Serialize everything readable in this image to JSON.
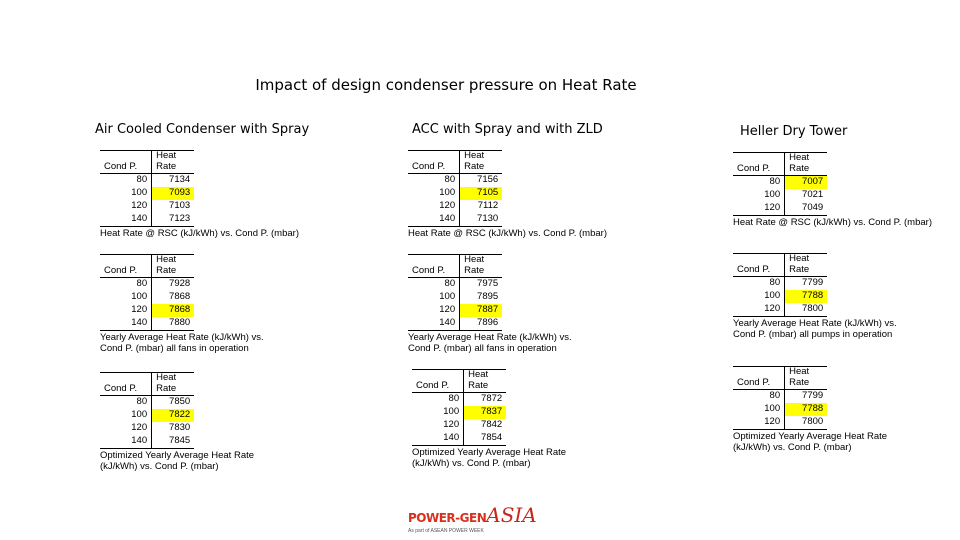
{
  "title": "Impact of design condenser pressure on Heat Rate",
  "columns": [
    {
      "heading": "Air Cooled Condenser with Spray",
      "tables": [
        {
          "col1": "Cond P.",
          "col2a": "Heat",
          "col2b": "Rate",
          "rows": [
            [
              "80",
              "7134"
            ],
            [
              "100",
              "7093"
            ],
            [
              "120",
              "7103"
            ],
            [
              "140",
              "7123"
            ]
          ],
          "highlight": 1,
          "caption1": "Heat Rate @ RSC (kJ/kWh) vs. Cond P. (mbar)",
          "caption2": ""
        },
        {
          "col1": "Cond P.",
          "col2a": "Heat",
          "col2b": "Rate",
          "rows": [
            [
              "80",
              "7928"
            ],
            [
              "100",
              "7868"
            ],
            [
              "120",
              "7868"
            ],
            [
              "140",
              "7880"
            ]
          ],
          "highlight": 2,
          "caption1": "Yearly Average Heat Rate (kJ/kWh) vs.",
          "caption2": "Cond P. (mbar) all fans in operation"
        },
        {
          "col1": "Cond P.",
          "col2a": "Heat",
          "col2b": "Rate",
          "rows": [
            [
              "80",
              "7850"
            ],
            [
              "100",
              "7822"
            ],
            [
              "120",
              "7830"
            ],
            [
              "140",
              "7845"
            ]
          ],
          "highlight": 1,
          "caption1": "Optimized Yearly Average Heat Rate",
          "caption2": "(kJ/kWh) vs. Cond P. (mbar)"
        }
      ]
    },
    {
      "heading": "ACC with Spray and with ZLD",
      "tables": [
        {
          "col1": "Cond P.",
          "col2a": "Heat",
          "col2b": "Rate",
          "rows": [
            [
              "80",
              "7156"
            ],
            [
              "100",
              "7105"
            ],
            [
              "120",
              "7112"
            ],
            [
              "140",
              "7130"
            ]
          ],
          "highlight": 1,
          "caption1": "Heat Rate @ RSC (kJ/kWh) vs. Cond P. (mbar)",
          "caption2": ""
        },
        {
          "col1": "Cond P.",
          "col2a": "Heat",
          "col2b": "Rate",
          "rows": [
            [
              "80",
              "7975"
            ],
            [
              "100",
              "7895"
            ],
            [
              "120",
              "7887"
            ],
            [
              "140",
              "7896"
            ]
          ],
          "highlight": 2,
          "caption1": "Yearly Average Heat Rate (kJ/kWh) vs.",
          "caption2": "Cond P. (mbar) all fans in operation"
        },
        {
          "col1": "Cond P.",
          "col2a": "Heat",
          "col2b": "Rate",
          "rows": [
            [
              "80",
              "7872"
            ],
            [
              "100",
              "7837"
            ],
            [
              "120",
              "7842"
            ],
            [
              "140",
              "7854"
            ]
          ],
          "highlight": 1,
          "caption1": "Optimized Yearly Average Heat Rate",
          "caption2": "(kJ/kWh) vs. Cond P. (mbar)"
        }
      ]
    },
    {
      "heading": "Heller Dry Tower",
      "tables": [
        {
          "col1": "Cond P.",
          "col2a": "Heat",
          "col2b": "Rate",
          "rows": [
            [
              "80",
              "7007"
            ],
            [
              "100",
              "7021"
            ],
            [
              "120",
              "7049"
            ]
          ],
          "highlight": 0,
          "caption1": "Heat Rate @ RSC (kJ/kWh) vs. Cond P. (mbar)",
          "caption2": ""
        },
        {
          "col1": "Cond P.",
          "col2a": "Heat",
          "col2b": "Rate",
          "rows": [
            [
              "80",
              "7799"
            ],
            [
              "100",
              "7788"
            ],
            [
              "120",
              "7800"
            ]
          ],
          "highlight": 1,
          "caption1": "Yearly Average Heat Rate (kJ/kWh) vs.",
          "caption2": "Cond P. (mbar) all pumps in operation"
        },
        {
          "col1": "Cond P.",
          "col2a": "Heat",
          "col2b": "Rate",
          "rows": [
            [
              "80",
              "7799"
            ],
            [
              "100",
              "7788"
            ],
            [
              "120",
              "7800"
            ]
          ],
          "highlight": 1,
          "caption1": "Optimized Yearly Average Heat Rate",
          "caption2": "(kJ/kWh) vs. Cond P. (mbar)"
        }
      ]
    }
  ],
  "logo": {
    "main": "POWER-GEN",
    "asia": "ASIA",
    "sub": "As part of ASEAN POWER WEEK"
  }
}
